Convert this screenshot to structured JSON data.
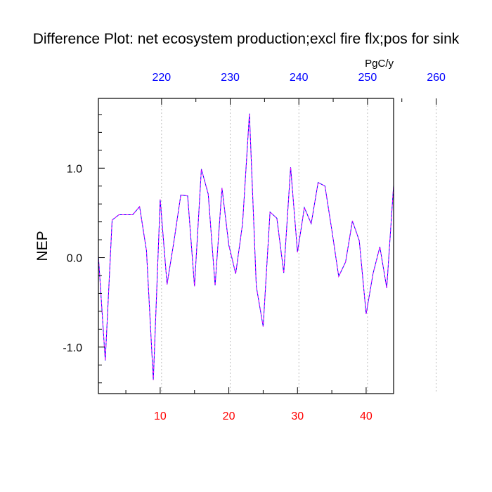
{
  "chart_data": {
    "type": "line",
    "title": "Difference Plot: net ecosystem production;excl fire flx;pos for sink",
    "units": "PgC/y",
    "ylabel": "NEP",
    "xlim": [
      1,
      44
    ],
    "ylim": [
      -1.52,
      1.78
    ],
    "top_axis_offset": 209.8,
    "x_ticks": [
      10,
      20,
      30,
      40
    ],
    "x_tick_labels": [
      "10",
      "20",
      "30",
      "40"
    ],
    "x_minor_ticks": [
      5,
      15,
      25,
      35
    ],
    "top_ticks": [
      220,
      230,
      240,
      250,
      260
    ],
    "top_tick_labels": [
      "220",
      "230",
      "240",
      "250",
      "260"
    ],
    "top_minor_ticks": [
      225,
      235,
      245,
      255
    ],
    "y_ticks": [
      -1.0,
      0.0,
      1.0
    ],
    "y_tick_labels": [
      "-1.0",
      "0.0",
      "1.0"
    ],
    "y_minor_ticks": [
      -1.4,
      -1.2,
      -0.8,
      -0.6,
      -0.4,
      -0.2,
      0.2,
      0.4,
      0.6,
      0.8,
      1.2,
      1.4,
      1.6
    ],
    "grid": "vertical dashed at top axis major ticks",
    "colors": {
      "bottom_axis_labels": "#ff0000",
      "top_axis_labels": "#0000ff",
      "line_a": "#0000ff",
      "line_b": "#ff00ff",
      "grid": "#b0b0b0"
    },
    "series": [
      {
        "x": [
          1,
          2,
          3,
          4,
          5,
          6,
          7,
          8,
          9,
          10,
          11,
          12,
          13,
          14,
          15,
          16,
          17,
          18,
          19,
          20,
          21,
          22,
          23,
          24,
          25,
          26,
          27,
          28,
          29,
          30,
          31,
          32,
          33,
          34,
          35,
          36,
          37,
          38,
          39,
          40,
          41,
          42,
          43,
          44
        ],
        "values": [
          0.02,
          -1.15,
          0.42,
          0.48,
          0.48,
          0.48,
          0.57,
          0.08,
          -1.37,
          0.65,
          -0.3,
          0.18,
          0.7,
          0.69,
          -0.32,
          0.99,
          0.71,
          -0.31,
          0.78,
          0.14,
          -0.18,
          0.38,
          1.61,
          -0.32,
          -0.77,
          0.51,
          0.44,
          -0.17,
          1.01,
          0.06,
          0.56,
          0.38,
          0.84,
          0.8,
          0.31,
          -0.21,
          -0.05,
          0.41,
          0.19,
          -0.63,
          -0.18,
          0.12,
          -0.34,
          0.81
        ]
      }
    ]
  }
}
